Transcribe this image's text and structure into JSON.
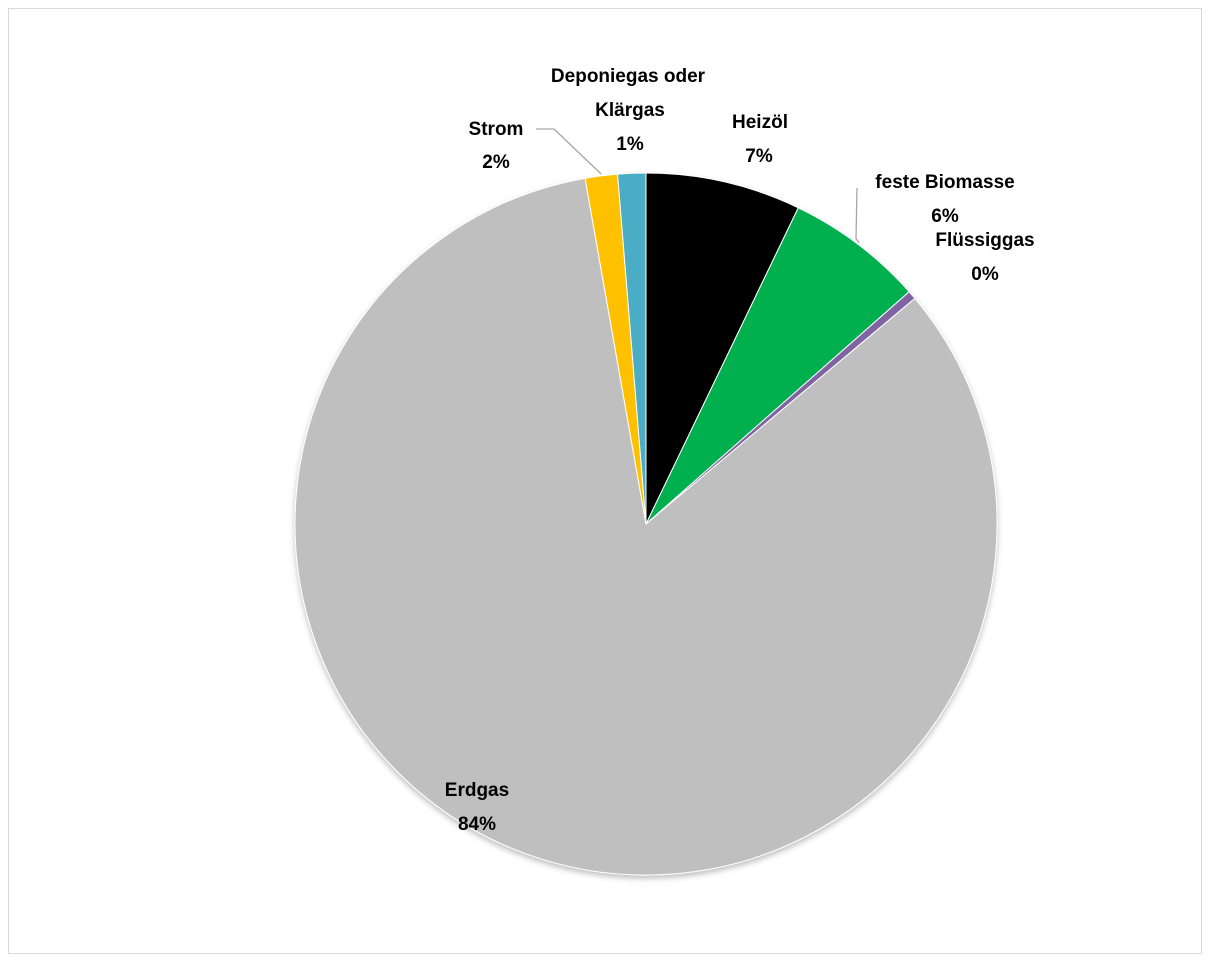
{
  "chart_data": {
    "type": "pie",
    "title": "",
    "slices": [
      {
        "label": "Heizöl",
        "percent_label": "7%",
        "value": 7.2,
        "color": "#000000"
      },
      {
        "label": "feste Biomasse",
        "percent_label": "6%",
        "value": 6.4,
        "color": "#00b050"
      },
      {
        "label": "Flüssiggas",
        "percent_label": "0%",
        "value": 0.4,
        "color": "#8064a2"
      },
      {
        "label": "Erdgas",
        "percent_label": "84%",
        "value": 84.0,
        "color": "#bfbfbf"
      },
      {
        "label": "Strom",
        "percent_label": "2%",
        "value": 1.5,
        "color": "#ffc000"
      },
      {
        "label": "Deponiegas oder Klärgas",
        "percent_label": "1%",
        "value": 1.3,
        "color": "#4bacc6"
      }
    ],
    "legend": "none",
    "data_labels": "category-and-percentage"
  }
}
